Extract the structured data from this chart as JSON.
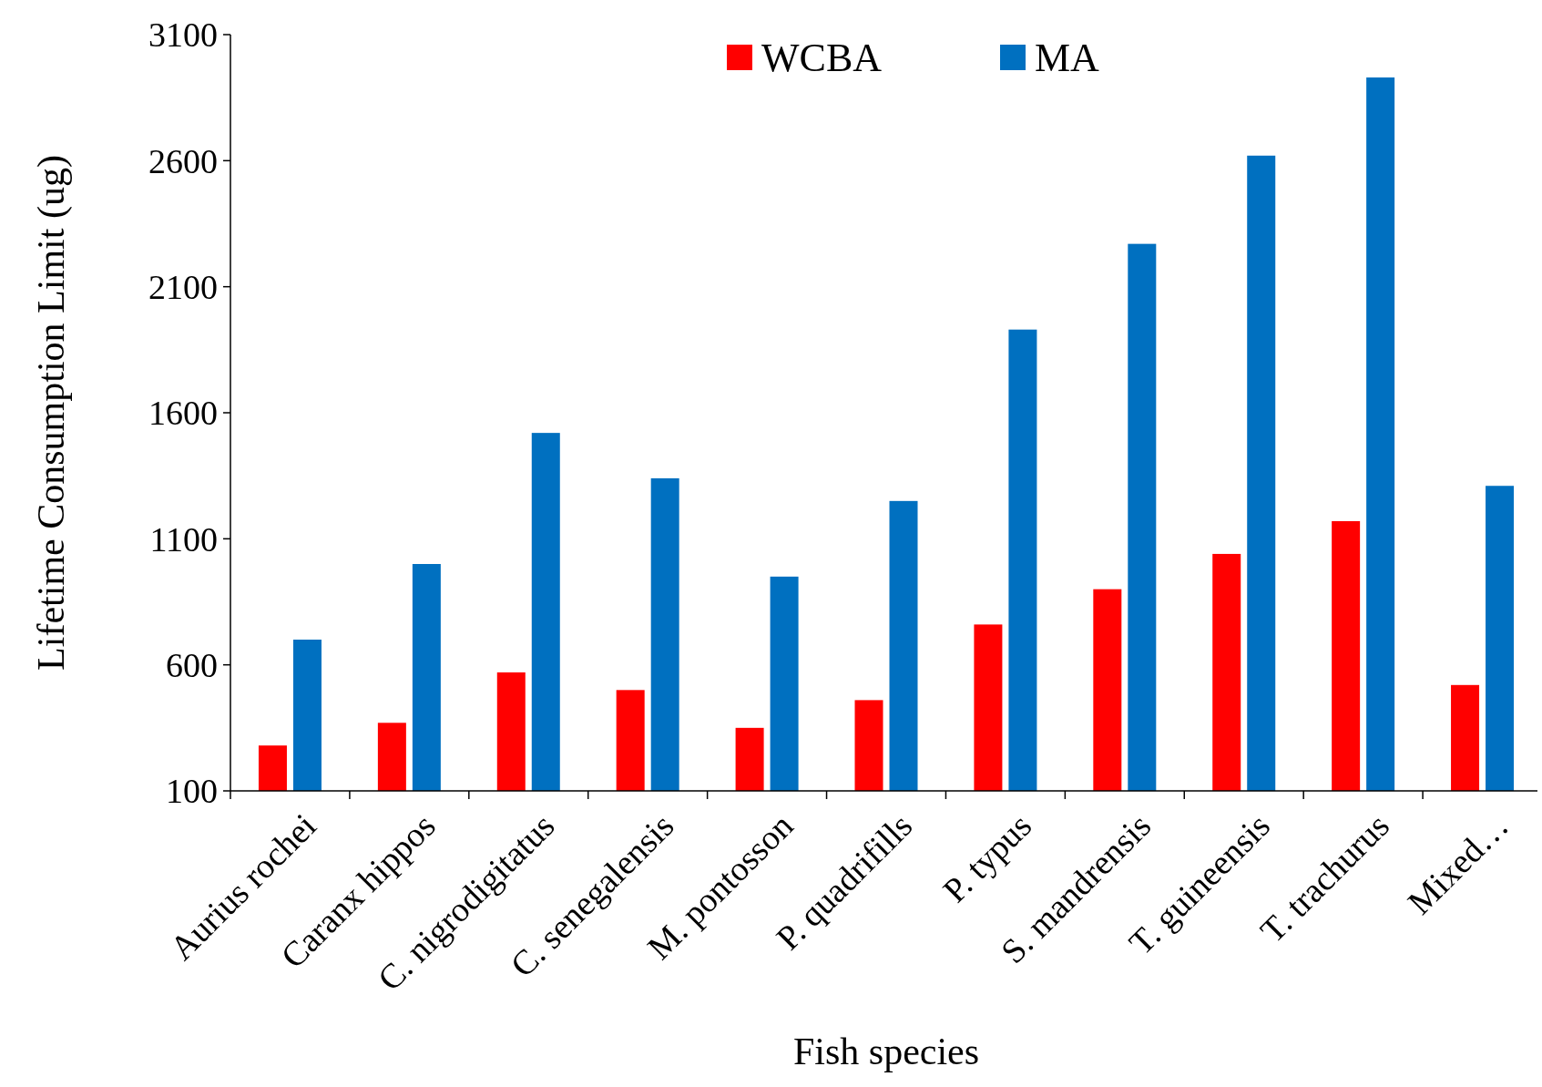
{
  "chart_data": {
    "type": "bar",
    "xlabel": "Fish species",
    "ylabel": "Lifetime Consumption Limit (ug)",
    "categories": [
      "Aurius rochei",
      "Caranx hippos",
      "C. nigrodigitatus",
      "C. senegalensis",
      "M. pontosson",
      "P. quadrifills",
      "P. typus",
      "S. mandrensis",
      "T. guineensis",
      "T. trachurus",
      "Mixed…"
    ],
    "series": [
      {
        "name": "WCBA",
        "color": "#ff0000",
        "values": [
          280,
          370,
          570,
          500,
          350,
          460,
          760,
          900,
          1040,
          1170,
          520
        ]
      },
      {
        "name": "MA",
        "color": "#0070c0",
        "values": [
          700,
          1000,
          1520,
          1340,
          950,
          1250,
          1930,
          2270,
          2620,
          2930,
          1310
        ]
      }
    ],
    "ylim": [
      100,
      3100
    ],
    "yticks": [
      100,
      600,
      1100,
      1600,
      2100,
      2600,
      3100
    ],
    "grid": false,
    "legend": "top"
  }
}
